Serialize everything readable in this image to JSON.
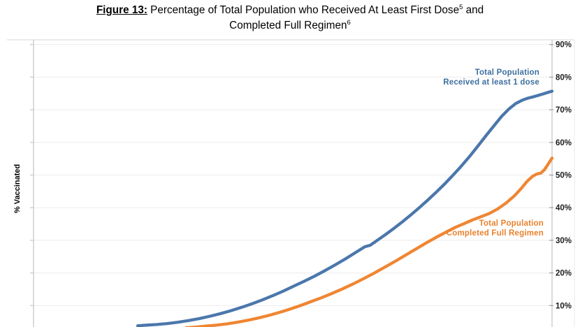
{
  "title": {
    "figure_label": "Figure 13:",
    "line1_main": " Percentage of Total Population who Received At Least First Dose",
    "sup_a": "5",
    "line1_tail": " and",
    "line2_main": "Completed Full Regimen",
    "sup_b": "6"
  },
  "y_axis": {
    "label": "% Vaccinated",
    "ticks": [
      90,
      80,
      70,
      60,
      50,
      40,
      30,
      20,
      10
    ],
    "suffix": "%"
  },
  "series_labels": {
    "first_dose": [
      "Total Population",
      "Received at least 1 dose"
    ],
    "full_regimen": [
      "Total Population",
      "Completed Full Regimen"
    ]
  },
  "colors": {
    "first_dose_line": "#4b77ab",
    "first_dose_text": "#3e6f9f",
    "full_regimen_line": "#ef8633",
    "full_regimen_text": "#e8822d",
    "gridline": "#efefef",
    "axis": "#c8c8c8",
    "frame": "#dedede",
    "tick_text": "#1c1c1c"
  },
  "chart_data": {
    "type": "line",
    "title": "Figure 13: Percentage of Total Population who Received At Least First Dose and Completed Full Regimen",
    "ylabel": "% Vaccinated",
    "ylim": [
      0,
      90
    ],
    "yticks": [
      10,
      20,
      30,
      40,
      50,
      60,
      70,
      80,
      90
    ],
    "grid": true,
    "x_axis_visible": false,
    "series": [
      {
        "name": "Total Population Received at least 1 dose",
        "color": "#4b77ab",
        "points": [
          [
            197,
            3.8
          ],
          [
            210,
            4.0
          ],
          [
            225,
            4.2
          ],
          [
            240,
            4.5
          ],
          [
            255,
            4.9
          ],
          [
            270,
            5.4
          ],
          [
            285,
            6.0
          ],
          [
            300,
            6.7
          ],
          [
            315,
            7.5
          ],
          [
            330,
            8.4
          ],
          [
            345,
            9.4
          ],
          [
            360,
            10.5
          ],
          [
            375,
            11.7
          ],
          [
            390,
            13.0
          ],
          [
            405,
            14.4
          ],
          [
            420,
            15.9
          ],
          [
            435,
            17.4
          ],
          [
            450,
            19.0
          ],
          [
            465,
            20.7
          ],
          [
            480,
            22.5
          ],
          [
            495,
            24.4
          ],
          [
            510,
            26.4
          ],
          [
            522,
            28.0
          ],
          [
            530,
            28.5
          ],
          [
            540,
            30.0
          ],
          [
            552,
            31.8
          ],
          [
            564,
            33.7
          ],
          [
            576,
            35.7
          ],
          [
            588,
            37.8
          ],
          [
            600,
            40.0
          ],
          [
            612,
            42.3
          ],
          [
            624,
            44.7
          ],
          [
            636,
            47.2
          ],
          [
            648,
            49.9
          ],
          [
            660,
            52.7
          ],
          [
            672,
            55.7
          ],
          [
            684,
            58.9
          ],
          [
            696,
            62.2
          ],
          [
            708,
            65.4
          ],
          [
            718,
            68.0
          ],
          [
            728,
            70.2
          ],
          [
            738,
            71.9
          ],
          [
            748,
            73.0
          ],
          [
            756,
            73.6
          ],
          [
            762,
            73.9
          ],
          [
            770,
            74.4
          ],
          [
            778,
            74.9
          ],
          [
            785,
            75.4
          ],
          [
            790,
            75.7
          ]
        ]
      },
      {
        "name": "Total Population Completed Full Regimen",
        "color": "#ef8633",
        "points": [
          [
            266,
            3.2
          ],
          [
            280,
            3.4
          ],
          [
            295,
            3.7
          ],
          [
            310,
            4.0
          ],
          [
            325,
            4.4
          ],
          [
            340,
            4.9
          ],
          [
            355,
            5.5
          ],
          [
            370,
            6.2
          ],
          [
            385,
            7.0
          ],
          [
            400,
            7.9
          ],
          [
            415,
            8.9
          ],
          [
            430,
            10.0
          ],
          [
            445,
            11.2
          ],
          [
            460,
            12.4
          ],
          [
            475,
            13.7
          ],
          [
            490,
            15.1
          ],
          [
            505,
            16.6
          ],
          [
            520,
            18.2
          ],
          [
            535,
            19.9
          ],
          [
            550,
            21.7
          ],
          [
            565,
            23.5
          ],
          [
            580,
            25.4
          ],
          [
            595,
            27.3
          ],
          [
            610,
            29.2
          ],
          [
            625,
            31.0
          ],
          [
            640,
            32.7
          ],
          [
            652,
            34.0
          ],
          [
            664,
            35.1
          ],
          [
            676,
            36.2
          ],
          [
            688,
            37.2
          ],
          [
            700,
            38.2
          ],
          [
            712,
            39.6
          ],
          [
            724,
            41.4
          ],
          [
            736,
            43.6
          ],
          [
            746,
            45.9
          ],
          [
            754,
            48.0
          ],
          [
            762,
            49.6
          ],
          [
            768,
            50.3
          ],
          [
            774,
            50.6
          ],
          [
            779,
            51.6
          ],
          [
            784,
            53.2
          ],
          [
            790,
            55.2
          ]
        ]
      }
    ]
  }
}
